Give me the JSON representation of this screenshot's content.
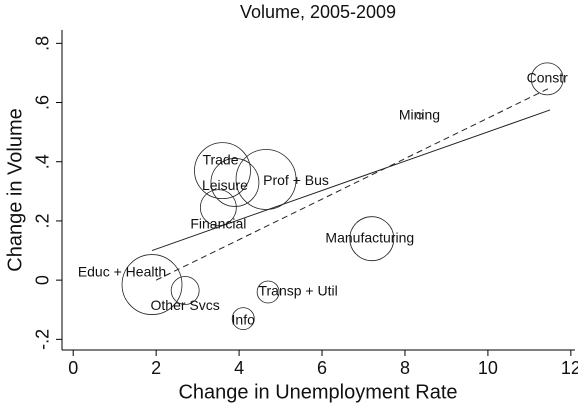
{
  "chart_data": {
    "type": "bubble",
    "title": "Volume, 2005-2009",
    "xlabel": "Change in Unemployment Rate",
    "ylabel": "Change in Volume",
    "labels": [
      "Constr",
      "Mining",
      "Trade",
      "Leisure",
      "Prof + Bus",
      "Financial",
      "Manufacturing",
      "Educ + Health",
      "Other Svcs",
      "Transp + Util",
      "Info"
    ],
    "x": [
      11.43,
      8.35,
      3.6,
      3.9,
      4.65,
      3.5,
      7.2,
      1.9,
      2.7,
      4.7,
      4.1
    ],
    "values": [
      0.68,
      0.555,
      0.37,
      0.33,
      0.34,
      0.245,
      0.14,
      -0.015,
      -0.035,
      -0.04,
      -0.13
    ],
    "sizes": [
      256,
      9,
      784,
      576,
      900,
      324,
      484,
      900,
      196,
      121,
      121
    ],
    "fit_lines": [
      {
        "style": "solid",
        "x": [
          1.9,
          11.5
        ],
        "values": [
          0.1,
          0.575
        ]
      },
      {
        "style": "dashed",
        "x": [
          2.0,
          11.5
        ],
        "values": [
          0.0,
          0.65
        ]
      }
    ],
    "xlim": [
      -0.27,
      12.1
    ],
    "ylim": [
      -0.236,
      0.845
    ],
    "xticks": [
      0,
      2,
      4,
      6,
      8,
      10,
      12
    ],
    "yticks": [
      {
        "value": -0.2,
        "label": "-.2"
      },
      0,
      {
        "value": 0.2,
        "label": ".2"
      },
      {
        "value": 0.4,
        "label": ".4"
      },
      {
        "value": 0.6,
        "label": ".6"
      },
      {
        "value": 0.8,
        "label": ".8"
      }
    ],
    "color": "#222222"
  }
}
